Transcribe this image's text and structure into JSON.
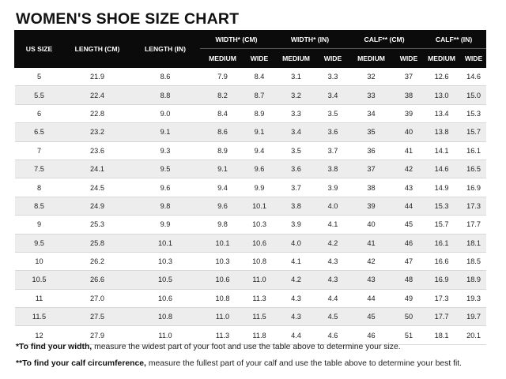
{
  "title": "WOMEN'S SHOE SIZE CHART",
  "header": {
    "us_size": "US SIZE",
    "length_cm": "LENGTH (CM)",
    "length_in": "LENGTH (IN)",
    "width_cm": "WIDTH* (CM)",
    "width_in": "WIDTH* (IN)",
    "calf_cm": "CALF** (CM)",
    "calf_in": "CALF** (IN)",
    "medium": "MEDIUM",
    "wide": "WIDE"
  },
  "rows": [
    [
      "5",
      "21.9",
      "8.6",
      "7.9",
      "8.4",
      "3.1",
      "3.3",
      "32",
      "37",
      "12.6",
      "14.6"
    ],
    [
      "5.5",
      "22.4",
      "8.8",
      "8.2",
      "8.7",
      "3.2",
      "3.4",
      "33",
      "38",
      "13.0",
      "15.0"
    ],
    [
      "6",
      "22.8",
      "9.0",
      "8.4",
      "8.9",
      "3.3",
      "3.5",
      "34",
      "39",
      "13.4",
      "15.3"
    ],
    [
      "6.5",
      "23.2",
      "9.1",
      "8.6",
      "9.1",
      "3.4",
      "3.6",
      "35",
      "40",
      "13.8",
      "15.7"
    ],
    [
      "7",
      "23.6",
      "9.3",
      "8.9",
      "9.4",
      "3.5",
      "3.7",
      "36",
      "41",
      "14.1",
      "16.1"
    ],
    [
      "7.5",
      "24.1",
      "9.5",
      "9.1",
      "9.6",
      "3.6",
      "3.8",
      "37",
      "42",
      "14.6",
      "16.5"
    ],
    [
      "8",
      "24.5",
      "9.6",
      "9.4",
      "9.9",
      "3.7",
      "3.9",
      "38",
      "43",
      "14.9",
      "16.9"
    ],
    [
      "8.5",
      "24.9",
      "9.8",
      "9.6",
      "10.1",
      "3.8",
      "4.0",
      "39",
      "44",
      "15.3",
      "17.3"
    ],
    [
      "9",
      "25.3",
      "9.9",
      "9.8",
      "10.3",
      "3.9",
      "4.1",
      "40",
      "45",
      "15.7",
      "17.7"
    ],
    [
      "9.5",
      "25.8",
      "10.1",
      "10.1",
      "10.6",
      "4.0",
      "4.2",
      "41",
      "46",
      "16.1",
      "18.1"
    ],
    [
      "10",
      "26.2",
      "10.3",
      "10.3",
      "10.8",
      "4.1",
      "4.3",
      "42",
      "47",
      "16.6",
      "18.5"
    ],
    [
      "10.5",
      "26.6",
      "10.5",
      "10.6",
      "11.0",
      "4.2",
      "4.3",
      "43",
      "48",
      "16.9",
      "18.9"
    ],
    [
      "11",
      "27.0",
      "10.6",
      "10.8",
      "11.3",
      "4.3",
      "4.4",
      "44",
      "49",
      "17.3",
      "19.3"
    ],
    [
      "11.5",
      "27.5",
      "10.8",
      "11.0",
      "11.5",
      "4.3",
      "4.5",
      "45",
      "50",
      "17.7",
      "19.7"
    ],
    [
      "12",
      "27.9",
      "11.0",
      "11.3",
      "11.8",
      "4.4",
      "4.6",
      "46",
      "51",
      "18.1",
      "20.1"
    ]
  ],
  "footnotes": {
    "width_bold": "*To find your width,",
    "width_text": " measure the widest part of your foot and use the table above to determine your size.",
    "calf_bold": "**To find your calf circumference,",
    "calf_text": " measure the fullest part of your calf and use the table above to determine your best fit."
  }
}
